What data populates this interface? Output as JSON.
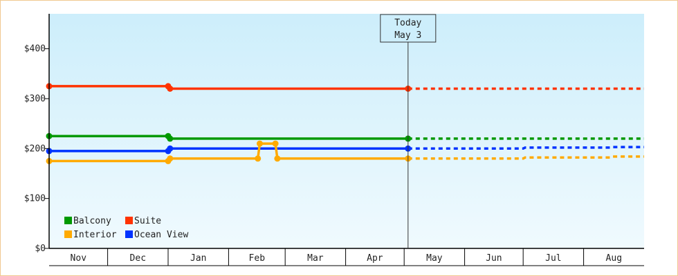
{
  "chart_data": {
    "type": "line",
    "title": "",
    "xlabel": "",
    "ylabel": "",
    "x_domain": [
      "2023-11-01",
      "2024-09-01"
    ],
    "ylim": [
      0,
      470
    ],
    "y_ticks": [
      0,
      100,
      200,
      300,
      400
    ],
    "y_tick_labels": [
      "$0",
      "$100",
      "$200",
      "$300",
      "$400"
    ],
    "months": [
      {
        "label": "Nov",
        "start": "2023-11-01"
      },
      {
        "label": "Dec",
        "start": "2023-12-01"
      },
      {
        "label": "Jan",
        "start": "2024-01-01"
      },
      {
        "label": "Feb",
        "start": "2024-02-01"
      },
      {
        "label": "Mar",
        "start": "2024-03-01"
      },
      {
        "label": "Apr",
        "start": "2024-04-01"
      },
      {
        "label": "May",
        "start": "2024-05-01"
      },
      {
        "label": "Jun",
        "start": "2024-06-01"
      },
      {
        "label": "Jul",
        "start": "2024-07-01"
      },
      {
        "label": "Aug",
        "start": "2024-08-01"
      }
    ],
    "today": {
      "date": "2024-05-03",
      "label_line1": "Today",
      "label_line2": "May 3"
    },
    "legend_placement": "bottom-left",
    "series": [
      {
        "name": "Suite",
        "color": "#ff3300",
        "actual": [
          [
            "2023-11-01",
            325
          ],
          [
            "2024-01-01",
            325
          ],
          [
            "2024-01-02",
            320
          ],
          [
            "2024-05-03",
            320
          ]
        ],
        "forecast": [
          [
            "2024-05-03",
            320
          ],
          [
            "2024-09-01",
            320
          ]
        ]
      },
      {
        "name": "Balcony",
        "color": "#009900",
        "actual": [
          [
            "2023-11-01",
            225
          ],
          [
            "2024-01-01",
            225
          ],
          [
            "2024-01-02",
            220
          ],
          [
            "2024-05-03",
            220
          ]
        ],
        "forecast": [
          [
            "2024-05-03",
            220
          ],
          [
            "2024-09-01",
            220
          ]
        ]
      },
      {
        "name": "Ocean View",
        "color": "#0033ff",
        "actual": [
          [
            "2023-11-01",
            195
          ],
          [
            "2024-01-01",
            195
          ],
          [
            "2024-01-02",
            200
          ],
          [
            "2024-05-03",
            200
          ]
        ],
        "forecast": [
          [
            "2024-05-03",
            200
          ],
          [
            "2024-07-01",
            200
          ],
          [
            "2024-07-02",
            202
          ],
          [
            "2024-08-15",
            202
          ],
          [
            "2024-08-16",
            203
          ],
          [
            "2024-09-01",
            203
          ]
        ]
      },
      {
        "name": "Interior",
        "color": "#ffaa00",
        "actual": [
          [
            "2023-11-01",
            175
          ],
          [
            "2024-01-01",
            175
          ],
          [
            "2024-01-02",
            180
          ],
          [
            "2024-02-16",
            180
          ],
          [
            "2024-02-17",
            210
          ],
          [
            "2024-02-25",
            210
          ],
          [
            "2024-02-26",
            180
          ],
          [
            "2024-05-03",
            180
          ]
        ],
        "forecast": [
          [
            "2024-05-03",
            180
          ],
          [
            "2024-07-01",
            180
          ],
          [
            "2024-07-02",
            182
          ],
          [
            "2024-08-15",
            182
          ],
          [
            "2024-08-16",
            184
          ],
          [
            "2024-09-01",
            184
          ]
        ]
      }
    ],
    "legend_order": [
      "Balcony",
      "Suite",
      "Interior",
      "Ocean View"
    ]
  }
}
